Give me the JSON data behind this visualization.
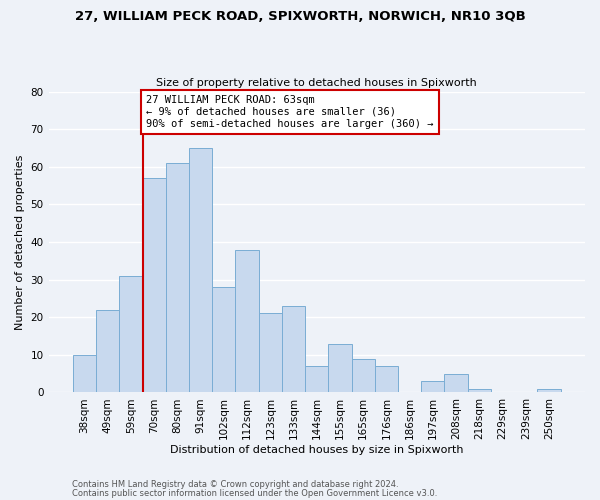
{
  "title": "27, WILLIAM PECK ROAD, SPIXWORTH, NORWICH, NR10 3QB",
  "subtitle": "Size of property relative to detached houses in Spixworth",
  "xlabel": "Distribution of detached houses by size in Spixworth",
  "ylabel": "Number of detached properties",
  "bar_color": "#c8d9ee",
  "bar_edge_color": "#7aadd4",
  "categories": [
    "38sqm",
    "49sqm",
    "59sqm",
    "70sqm",
    "80sqm",
    "91sqm",
    "102sqm",
    "112sqm",
    "123sqm",
    "133sqm",
    "144sqm",
    "155sqm",
    "165sqm",
    "176sqm",
    "186sqm",
    "197sqm",
    "208sqm",
    "218sqm",
    "229sqm",
    "239sqm",
    "250sqm"
  ],
  "values": [
    10,
    22,
    31,
    57,
    61,
    65,
    28,
    38,
    21,
    23,
    7,
    13,
    9,
    7,
    0,
    3,
    5,
    1,
    0,
    0,
    1
  ],
  "ylim": [
    0,
    80
  ],
  "yticks": [
    0,
    10,
    20,
    30,
    40,
    50,
    60,
    70,
    80
  ],
  "vline_x_index": 2,
  "vline_color": "#cc0000",
  "annotation_line1": "27 WILLIAM PECK ROAD: 63sqm",
  "annotation_line2": "← 9% of detached houses are smaller (36)",
  "annotation_line3": "90% of semi-detached houses are larger (360) →",
  "annotation_box_color": "#ffffff",
  "annotation_box_edge": "#cc0000",
  "footer1": "Contains HM Land Registry data © Crown copyright and database right 2024.",
  "footer2": "Contains public sector information licensed under the Open Government Licence v3.0.",
  "background_color": "#eef2f8",
  "grid_color": "#ffffff"
}
